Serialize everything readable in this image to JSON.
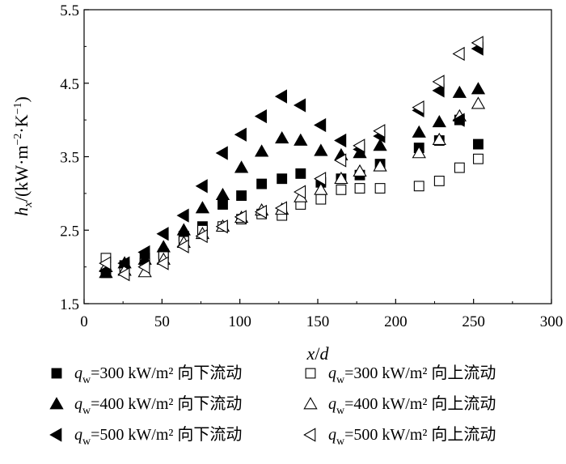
{
  "chart_data": {
    "type": "scatter",
    "xlabel": "x/d",
    "ylabel": "hx/(kW·m−2·K−1)",
    "xlim": [
      0,
      300
    ],
    "ylim": [
      1.5,
      5.5
    ],
    "xticks": [
      "0",
      "50",
      "100",
      "150",
      "200",
      "250",
      "300"
    ],
    "yticks": [
      "1.5",
      "2.5",
      "3.5",
      "4.5",
      "5.5"
    ],
    "grid": false,
    "legend_position": "bottom",
    "series": [
      {
        "name": "qw=300 kW/m2 向下流动",
        "legend_label": "=300 kW/m² 向下流动",
        "marker": "square-filled",
        "x": [
          14,
          26,
          39,
          51,
          64,
          76,
          89,
          101,
          114,
          127,
          139,
          152,
          165,
          177,
          190,
          215,
          228,
          241,
          253
        ],
        "y": [
          1.92,
          2.02,
          2.12,
          2.18,
          2.42,
          2.55,
          2.85,
          2.97,
          3.13,
          3.2,
          3.27,
          3.15,
          3.2,
          3.25,
          3.4,
          3.62,
          3.72,
          4.0,
          3.67
        ]
      },
      {
        "name": "qw=300 kW/m2 向上流动",
        "legend_label": "=300 kW/m² 向上流动",
        "marker": "square-open",
        "x": [
          14,
          26,
          39,
          51,
          64,
          76,
          89,
          101,
          114,
          127,
          139,
          152,
          165,
          177,
          190,
          215,
          228,
          241,
          253
        ],
        "y": [
          2.12,
          2.0,
          2.05,
          2.15,
          2.35,
          2.5,
          2.55,
          2.65,
          2.72,
          2.7,
          2.85,
          2.92,
          3.05,
          3.07,
          3.07,
          3.1,
          3.17,
          3.35,
          3.47
        ]
      },
      {
        "name": "qw=400 kW/m2 向下流动",
        "legend_label": "=400 kW/m² 向下流动",
        "marker": "triangle-up-filled",
        "x": [
          14,
          26,
          39,
          51,
          64,
          76,
          89,
          101,
          114,
          127,
          139,
          152,
          165,
          177,
          190,
          215,
          228,
          241,
          253
        ],
        "y": [
          1.92,
          2.05,
          2.1,
          2.27,
          2.5,
          2.8,
          2.98,
          3.35,
          3.57,
          3.75,
          3.72,
          3.58,
          3.52,
          3.55,
          3.65,
          3.83,
          3.97,
          4.37,
          4.42
        ]
      },
      {
        "name": "qw=400 kW/m2 向上流动",
        "legend_label": "=400 kW/m² 向上流动",
        "marker": "triangle-up-open",
        "x": [
          14,
          26,
          39,
          51,
          64,
          76,
          89,
          101,
          114,
          127,
          139,
          152,
          165,
          177,
          190,
          215,
          228,
          241,
          253
        ],
        "y": [
          2.0,
          1.95,
          1.93,
          2.1,
          2.33,
          2.45,
          2.55,
          2.67,
          2.77,
          2.78,
          2.95,
          3.05,
          3.2,
          3.3,
          3.37,
          3.55,
          3.73,
          4.05,
          4.22
        ]
      },
      {
        "name": "qw=500 kW/m2 向下流动",
        "legend_label": "=500 kW/m² 向下流动",
        "marker": "triangle-left-filled",
        "x": [
          14,
          26,
          39,
          51,
          64,
          76,
          89,
          101,
          114,
          127,
          139,
          152,
          165,
          177,
          190,
          215,
          228,
          241,
          253
        ],
        "y": [
          1.95,
          2.05,
          2.2,
          2.45,
          2.7,
          3.1,
          3.55,
          3.8,
          4.05,
          4.32,
          4.2,
          3.93,
          3.72,
          3.6,
          3.78,
          4.13,
          4.4,
          4.0,
          4.97
        ]
      },
      {
        "name": "qw=500 kW/m2 向上流动",
        "legend_label": "=500 kW/m² 向上流动",
        "marker": "triangle-left-open",
        "x": [
          14,
          26,
          39,
          51,
          64,
          76,
          89,
          101,
          114,
          127,
          139,
          152,
          165,
          177,
          190,
          215,
          228,
          241,
          253
        ],
        "y": [
          2.05,
          1.9,
          2.0,
          2.05,
          2.28,
          2.42,
          2.55,
          2.68,
          2.75,
          2.8,
          3.02,
          3.2,
          3.45,
          3.65,
          3.85,
          4.17,
          4.52,
          4.9,
          5.05
        ]
      }
    ]
  }
}
